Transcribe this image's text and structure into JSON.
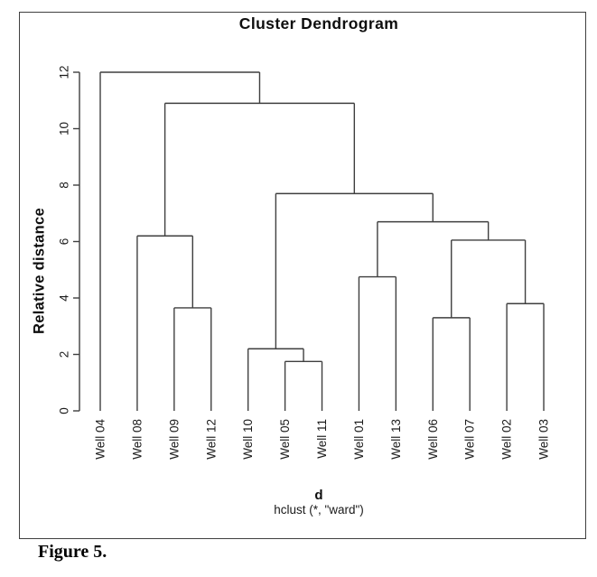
{
  "caption": {
    "text": "Figure 5."
  },
  "chart_data": {
    "type": "dendrogram",
    "title": "Cluster Dendrogram",
    "ylabel": "Relative distance",
    "xlabel": "d",
    "subtitle": "hclust (*, \"ward\")",
    "ylim": [
      0,
      12
    ],
    "yticks": [
      0,
      2,
      4,
      6,
      8,
      10,
      12
    ],
    "grid": false,
    "line_color": "#3f3f3f",
    "text_color": "#1c1c1c",
    "leaves": [
      "Well 04",
      "Well 08",
      "Well 09",
      "Well 12",
      "Well 10",
      "Well 05",
      "Well 11",
      "Well 01",
      "Well 13",
      "Well 06",
      "Well 07",
      "Well 02",
      "Well 03"
    ],
    "merges": [
      {
        "members": [
          "Well 05",
          "Well 11"
        ],
        "height": 1.75
      },
      {
        "members": [
          "Well 10",
          "Well 05+Well 11"
        ],
        "height": 2.2
      },
      {
        "members": [
          "Well 06",
          "Well 07"
        ],
        "height": 3.3
      },
      {
        "members": [
          "Well 09",
          "Well 12"
        ],
        "height": 3.65
      },
      {
        "members": [
          "Well 02",
          "Well 03"
        ],
        "height": 3.8
      },
      {
        "members": [
          "Well 01",
          "Well 13"
        ],
        "height": 4.75
      },
      {
        "members": [
          "Well 06+Well 07",
          "Well 02+Well 03"
        ],
        "height": 6.05
      },
      {
        "members": [
          "Well 08",
          "Well 09+Well 12"
        ],
        "height": 6.2
      },
      {
        "members": [
          "Well 01+Well 13",
          "Well 06+Well 07+Well 02+Well 03"
        ],
        "height": 6.7
      },
      {
        "members": [
          "Well 10+Well 05+Well 11",
          "right-six-cluster"
        ],
        "height": 7.7
      },
      {
        "members": [
          "Well 08 cluster",
          "right-nine-cluster"
        ],
        "height": 10.9
      },
      {
        "members": [
          "Well 04",
          "all-others"
        ],
        "height": 12.0
      }
    ],
    "tree": {
      "h": 12,
      "children": [
        {
          "leaf": "Well 04"
        },
        {
          "h": 10.9,
          "children": [
            {
              "h": 6.2,
              "children": [
                {
                  "leaf": "Well 08"
                },
                {
                  "h": 3.65,
                  "children": [
                    {
                      "leaf": "Well 09"
                    },
                    {
                      "leaf": "Well 12"
                    }
                  ]
                }
              ]
            },
            {
              "h": 7.7,
              "children": [
                {
                  "h": 2.2,
                  "children": [
                    {
                      "leaf": "Well 10"
                    },
                    {
                      "h": 1.75,
                      "children": [
                        {
                          "leaf": "Well 05"
                        },
                        {
                          "leaf": "Well 11"
                        }
                      ]
                    }
                  ]
                },
                {
                  "h": 6.7,
                  "children": [
                    {
                      "h": 4.75,
                      "children": [
                        {
                          "leaf": "Well 01"
                        },
                        {
                          "leaf": "Well 13"
                        }
                      ]
                    },
                    {
                      "h": 6.05,
                      "children": [
                        {
                          "h": 3.3,
                          "children": [
                            {
                              "leaf": "Well 06"
                            },
                            {
                              "leaf": "Well 07"
                            }
                          ]
                        },
                        {
                          "h": 3.8,
                          "children": [
                            {
                              "leaf": "Well 02"
                            },
                            {
                              "leaf": "Well 03"
                            }
                          ]
                        }
                      ]
                    }
                  ]
                }
              ]
            }
          ]
        }
      ]
    }
  }
}
